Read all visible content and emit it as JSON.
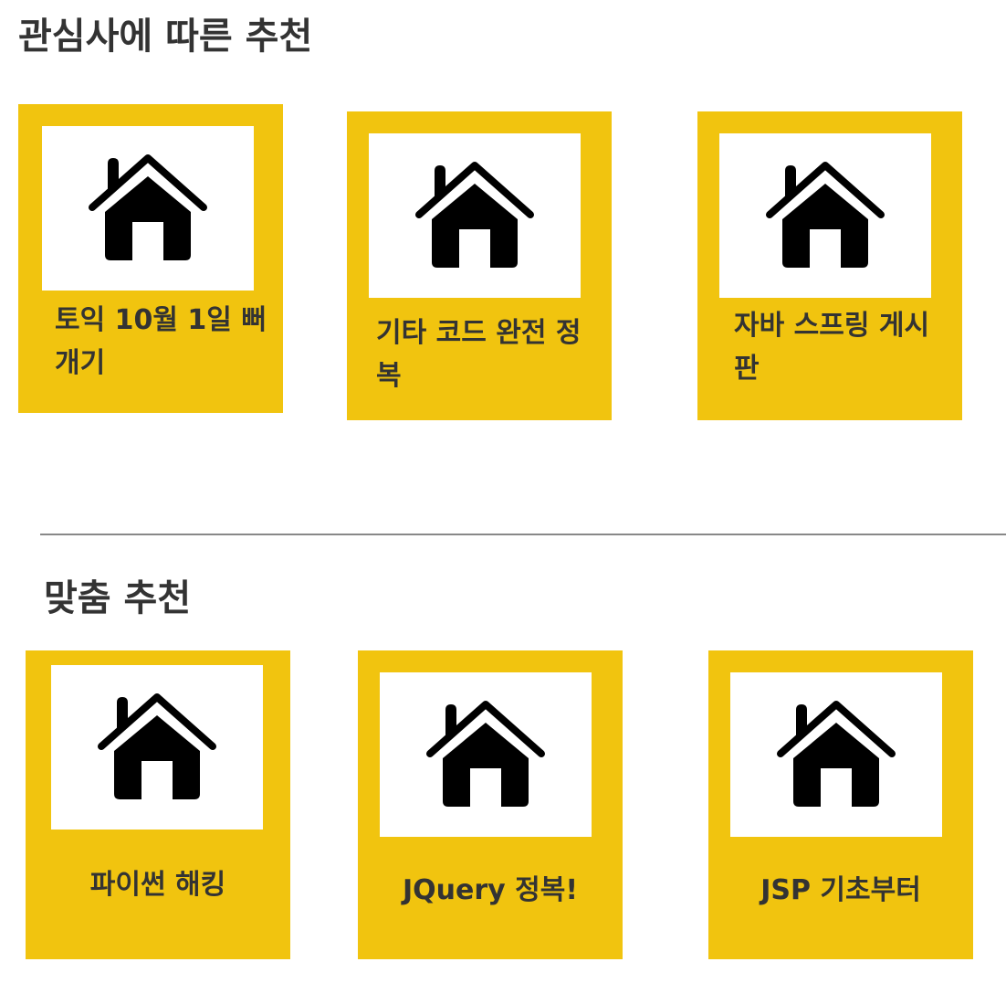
{
  "sections": [
    {
      "title": "관심사에 따른 추천",
      "cards": [
        {
          "title": "토익 10월 1일 뻐개기",
          "icon": "home-icon"
        },
        {
          "title": "기타 코드 완전 정복",
          "icon": "home-icon"
        },
        {
          "title": "자바 스프링 게시판",
          "icon": "home-icon"
        }
      ]
    },
    {
      "title": "맞춤 추천",
      "cards": [
        {
          "title": "파이썬 해킹",
          "icon": "home-icon"
        },
        {
          "title": "JQuery 정복!",
          "icon": "home-icon"
        },
        {
          "title": "JSP 기초부터",
          "icon": "home-icon"
        }
      ]
    }
  ],
  "colors": {
    "card_background": "#f1c40f",
    "thumbnail_background": "#ffffff",
    "text": "#333333",
    "divider": "#888888"
  }
}
